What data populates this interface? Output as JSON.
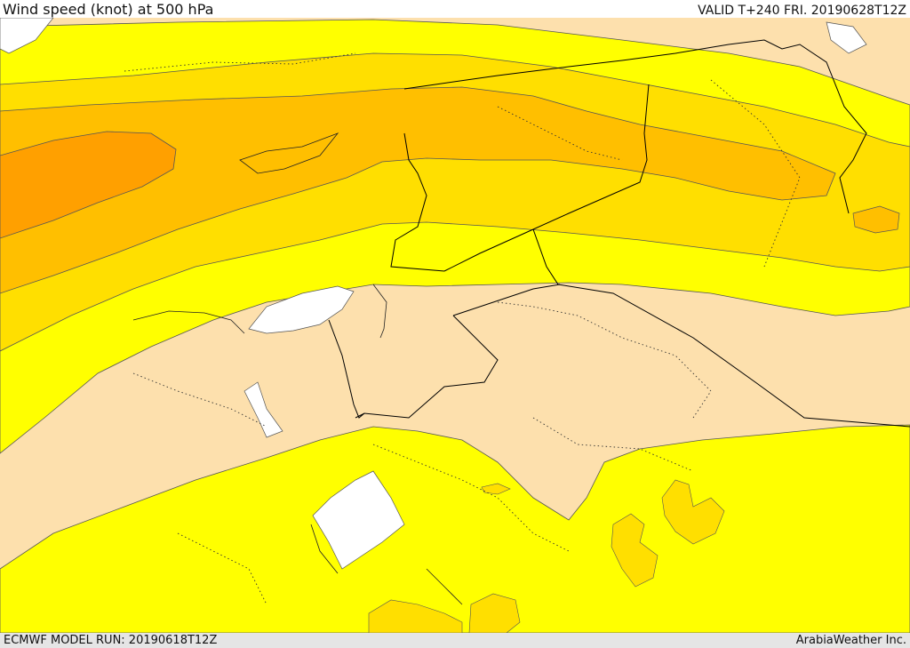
{
  "header": {
    "title": "Wind speed (knot) at 500 hPa",
    "valid": "VALID T+240 FRI. 20190628T12Z"
  },
  "footer": {
    "model_run": "ECMWF MODEL RUN: 20190618T12Z",
    "credit": "ArabiaWeather Inc."
  },
  "colors": {
    "land_low": "#fde0ad",
    "band_yellow": "#ffff00",
    "band_gold": "#ffdf00",
    "band_light_orange": "#ffbf00",
    "band_orange": "#ffa000",
    "sea_mask": "#ffffff",
    "border": "#000000"
  }
}
